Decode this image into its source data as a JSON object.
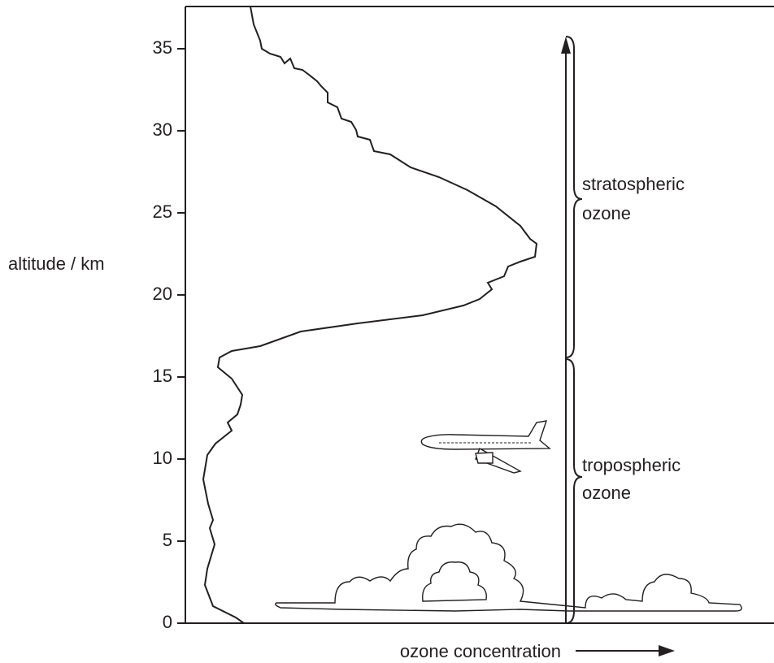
{
  "chart_data": {
    "type": "line",
    "y_label": "altitude / km",
    "x_label": "ozone concentration",
    "ylim": [
      0,
      37.5
    ],
    "yticks": [
      0,
      5,
      10,
      15,
      20,
      25,
      30,
      35
    ],
    "annotations": [
      [
        "stratospheric",
        "ozone"
      ],
      [
        "tropospheric",
        "ozone"
      ]
    ]
  }
}
